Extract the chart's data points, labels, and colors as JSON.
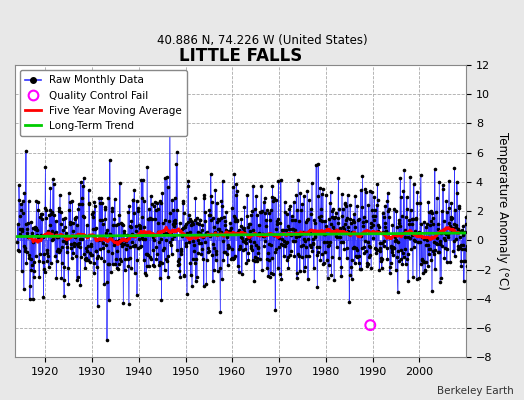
{
  "title": "LITTLE FALLS",
  "subtitle": "40.886 N, 74.226 W (United States)",
  "ylabel": "Temperature Anomaly (°C)",
  "source_text": "Berkeley Earth",
  "start_year": 1914,
  "end_year": 2011,
  "ylim": [
    -8,
    12
  ],
  "yticks": [
    -8,
    -6,
    -4,
    -2,
    0,
    2,
    4,
    6,
    8,
    10,
    12
  ],
  "xticks": [
    1920,
    1930,
    1940,
    1950,
    1960,
    1970,
    1980,
    1990,
    2000
  ],
  "fig_bg_color": "#e8e8e8",
  "plot_bg_color": "#ffffff",
  "raw_color": "#3333ff",
  "ma_color": "#ff0000",
  "trend_color": "#00cc00",
  "qc_color": "#ff00ff",
  "qc_points": [
    [
      1989.5,
      -5.8
    ]
  ],
  "long_term_trend_intercept": 0.25,
  "long_term_trend_slope": 0.003
}
